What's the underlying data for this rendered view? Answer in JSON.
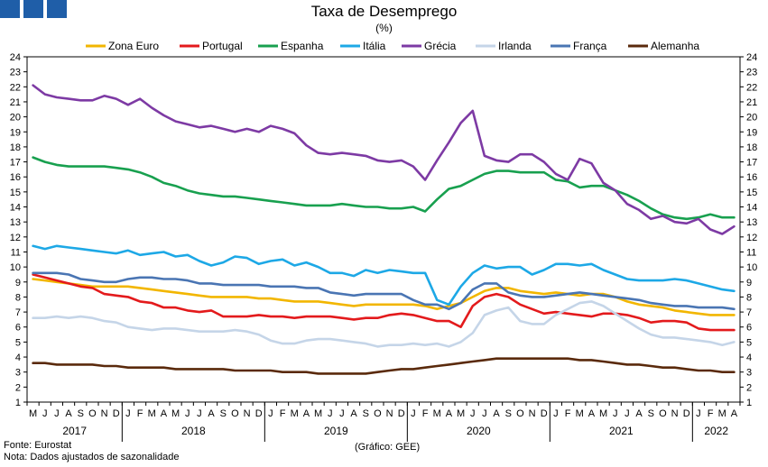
{
  "header": {
    "title": "Taxa de Desemprego",
    "subtitle": "(%)"
  },
  "footer": {
    "source": "Fonte: Eurostat",
    "note": "Nota: Dados ajustados de sazonalidade",
    "credit": "(Gráfico: GEE)"
  },
  "colors": {
    "logo": "#1f5ea8"
  },
  "chart_data": {
    "type": "line",
    "title": "Taxa de Desemprego",
    "subtitle": "(%)",
    "ylim": [
      1,
      24
    ],
    "yticks": [
      1,
      2,
      3,
      4,
      5,
      6,
      7,
      8,
      9,
      10,
      11,
      12,
      13,
      14,
      15,
      16,
      17,
      18,
      19,
      20,
      21,
      22,
      23,
      24
    ],
    "grid": false,
    "legend_position": "top",
    "months": [
      "M",
      "J",
      "J",
      "A",
      "S",
      "O",
      "N",
      "D",
      "J",
      "F",
      "M",
      "A",
      "M",
      "J",
      "J",
      "A",
      "S",
      "O",
      "N",
      "D",
      "J",
      "F",
      "M",
      "A",
      "M",
      "J",
      "J",
      "A",
      "S",
      "O",
      "N",
      "D",
      "J",
      "F",
      "M",
      "A",
      "M",
      "J",
      "J",
      "A",
      "S",
      "O",
      "N",
      "D",
      "J",
      "F",
      "M",
      "A",
      "M",
      "J",
      "J",
      "A",
      "S",
      "O",
      "N",
      "D",
      "J",
      "F",
      "M",
      "A"
    ],
    "years": [
      {
        "label": "2017",
        "start": 0,
        "count": 8
      },
      {
        "label": "2018",
        "start": 8,
        "count": 12
      },
      {
        "label": "2019",
        "start": 20,
        "count": 12
      },
      {
        "label": "2020",
        "start": 32,
        "count": 12
      },
      {
        "label": "2021",
        "start": 44,
        "count": 12
      },
      {
        "label": "2022",
        "start": 56,
        "count": 4
      }
    ],
    "series": [
      {
        "name": "Zona Euro",
        "color": "#f2b600",
        "values": [
          9.2,
          9.1,
          9.0,
          8.9,
          8.8,
          8.7,
          8.7,
          8.7,
          8.7,
          8.6,
          8.5,
          8.4,
          8.3,
          8.2,
          8.1,
          8.0,
          8.0,
          8.0,
          8.0,
          7.9,
          7.9,
          7.8,
          7.7,
          7.7,
          7.7,
          7.6,
          7.5,
          7.4,
          7.5,
          7.5,
          7.5,
          7.5,
          7.5,
          7.4,
          7.2,
          7.4,
          7.6,
          8.0,
          8.4,
          8.6,
          8.6,
          8.4,
          8.3,
          8.2,
          8.3,
          8.2,
          8.1,
          8.2,
          8.2,
          8.0,
          7.7,
          7.5,
          7.4,
          7.3,
          7.1,
          7.0,
          6.9,
          6.8,
          6.8,
          6.8
        ]
      },
      {
        "name": "Portugal",
        "color": "#e31a1c",
        "values": [
          9.5,
          9.3,
          9.1,
          8.9,
          8.7,
          8.6,
          8.2,
          8.1,
          8.0,
          7.7,
          7.6,
          7.3,
          7.3,
          7.1,
          7.0,
          7.1,
          6.7,
          6.7,
          6.7,
          6.8,
          6.7,
          6.7,
          6.6,
          6.7,
          6.7,
          6.7,
          6.6,
          6.5,
          6.6,
          6.6,
          6.8,
          6.9,
          6.8,
          6.6,
          6.4,
          6.4,
          6.0,
          7.4,
          8.0,
          8.2,
          8.0,
          7.5,
          7.2,
          6.9,
          7.0,
          6.9,
          6.8,
          6.7,
          6.9,
          6.9,
          6.8,
          6.6,
          6.3,
          6.4,
          6.4,
          6.3,
          5.9,
          5.8,
          5.8,
          5.8
        ]
      },
      {
        "name": "Espanha",
        "color": "#18a04f",
        "values": [
          17.3,
          17.0,
          16.8,
          16.7,
          16.7,
          16.7,
          16.7,
          16.6,
          16.5,
          16.3,
          16.0,
          15.6,
          15.4,
          15.1,
          14.9,
          14.8,
          14.7,
          14.7,
          14.6,
          14.5,
          14.4,
          14.3,
          14.2,
          14.1,
          14.1,
          14.1,
          14.2,
          14.1,
          14.0,
          14.0,
          13.9,
          13.9,
          14.0,
          13.7,
          14.5,
          15.2,
          15.4,
          15.8,
          16.2,
          16.4,
          16.4,
          16.3,
          16.3,
          16.3,
          15.8,
          15.7,
          15.3,
          15.4,
          15.4,
          15.1,
          14.8,
          14.4,
          13.9,
          13.5,
          13.3,
          13.2,
          13.3,
          13.5,
          13.3,
          13.3
        ]
      },
      {
        "name": "Itália",
        "color": "#1da8e6",
        "values": [
          11.4,
          11.2,
          11.4,
          11.3,
          11.2,
          11.1,
          11.0,
          10.9,
          11.1,
          10.8,
          10.9,
          11.0,
          10.7,
          10.8,
          10.4,
          10.1,
          10.3,
          10.7,
          10.6,
          10.2,
          10.4,
          10.5,
          10.1,
          10.3,
          10.0,
          9.6,
          9.6,
          9.4,
          9.8,
          9.6,
          9.8,
          9.7,
          9.6,
          9.6,
          7.8,
          7.5,
          8.7,
          9.6,
          10.1,
          9.9,
          10.0,
          10.0,
          9.5,
          9.8,
          10.2,
          10.2,
          10.1,
          10.2,
          9.8,
          9.5,
          9.2,
          9.1,
          9.1,
          9.1,
          9.2,
          9.1,
          8.9,
          8.7,
          8.5,
          8.4
        ]
      },
      {
        "name": "Grécia",
        "color": "#7d3aa4",
        "values": [
          22.1,
          21.5,
          21.3,
          21.2,
          21.1,
          21.1,
          21.4,
          21.2,
          20.8,
          21.2,
          20.6,
          20.1,
          19.7,
          19.5,
          19.3,
          19.4,
          19.2,
          19.0,
          19.2,
          19.0,
          19.4,
          19.2,
          18.9,
          18.1,
          17.6,
          17.5,
          17.6,
          17.5,
          17.4,
          17.1,
          17.0,
          17.1,
          16.7,
          15.8,
          17.1,
          18.3,
          19.6,
          20.4,
          17.4,
          17.1,
          17.0,
          17.5,
          17.5,
          17.0,
          16.2,
          15.8,
          17.2,
          16.9,
          15.6,
          15.1,
          14.2,
          13.8,
          13.2,
          13.4,
          13.0,
          12.9,
          13.2,
          12.5,
          12.2,
          12.7
        ]
      },
      {
        "name": "Irlanda",
        "color": "#c5d5e8",
        "values": [
          6.6,
          6.6,
          6.7,
          6.6,
          6.7,
          6.6,
          6.4,
          6.3,
          6.0,
          5.9,
          5.8,
          5.9,
          5.9,
          5.8,
          5.7,
          5.7,
          5.7,
          5.8,
          5.7,
          5.5,
          5.1,
          4.9,
          4.9,
          5.1,
          5.2,
          5.2,
          5.1,
          5.0,
          4.9,
          4.7,
          4.8,
          4.8,
          4.9,
          4.8,
          4.9,
          4.7,
          5.0,
          5.6,
          6.8,
          7.1,
          7.3,
          6.4,
          6.2,
          6.2,
          6.8,
          7.2,
          7.6,
          7.7,
          7.4,
          6.9,
          6.4,
          5.9,
          5.5,
          5.3,
          5.3,
          5.2,
          5.1,
          5.0,
          4.8,
          5.0
        ]
      },
      {
        "name": "França",
        "color": "#4a75b3",
        "values": [
          9.6,
          9.6,
          9.6,
          9.5,
          9.2,
          9.1,
          9.0,
          9.0,
          9.2,
          9.3,
          9.3,
          9.2,
          9.2,
          9.1,
          8.9,
          8.9,
          8.8,
          8.8,
          8.8,
          8.8,
          8.7,
          8.7,
          8.7,
          8.6,
          8.6,
          8.3,
          8.2,
          8.1,
          8.2,
          8.2,
          8.2,
          8.2,
          7.8,
          7.5,
          7.5,
          7.2,
          7.6,
          8.5,
          8.9,
          8.9,
          8.3,
          8.1,
          8.0,
          8.0,
          8.1,
          8.2,
          8.3,
          8.2,
          8.1,
          8.0,
          7.9,
          7.8,
          7.6,
          7.5,
          7.4,
          7.4,
          7.3,
          7.3,
          7.3,
          7.2
        ]
      },
      {
        "name": "Alemanha",
        "color": "#5a2a0c",
        "values": [
          3.6,
          3.6,
          3.5,
          3.5,
          3.5,
          3.5,
          3.4,
          3.4,
          3.3,
          3.3,
          3.3,
          3.3,
          3.2,
          3.2,
          3.2,
          3.2,
          3.2,
          3.1,
          3.1,
          3.1,
          3.1,
          3.0,
          3.0,
          3.0,
          2.9,
          2.9,
          2.9,
          2.9,
          2.9,
          3.0,
          3.1,
          3.2,
          3.2,
          3.3,
          3.4,
          3.5,
          3.6,
          3.7,
          3.8,
          3.9,
          3.9,
          3.9,
          3.9,
          3.9,
          3.9,
          3.9,
          3.8,
          3.8,
          3.7,
          3.6,
          3.5,
          3.5,
          3.4,
          3.3,
          3.3,
          3.2,
          3.1,
          3.1,
          3.0,
          3.0
        ]
      }
    ]
  }
}
